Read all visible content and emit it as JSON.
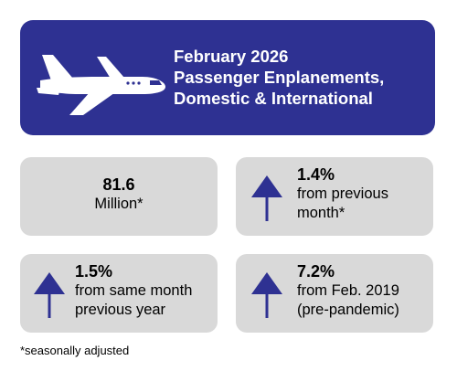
{
  "header": {
    "title": [
      "February 2026",
      "Passenger Enplanements,",
      "Domestic & International"
    ]
  },
  "cards": [
    {
      "value": "81.6",
      "lines": [
        "Million*"
      ]
    },
    {
      "value": "1.4%",
      "lines": [
        "from previous",
        "month*"
      ]
    },
    {
      "value": "1.5%",
      "lines": [
        "from same month",
        "previous year"
      ]
    },
    {
      "value": "7.2%",
      "lines": [
        "from Feb. 2019",
        "(pre-pandemic)"
      ]
    }
  ],
  "footnote": "*seasonally adjusted"
}
